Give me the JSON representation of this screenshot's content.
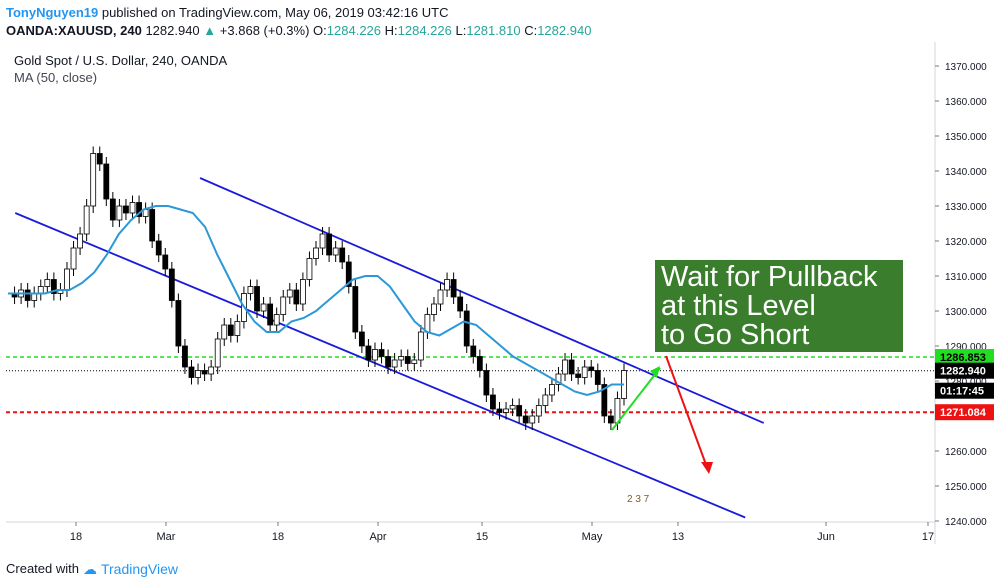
{
  "header": {
    "author": "TonyNguyen19",
    "published": "published on TradingView.com, May 06, 2019 03:42:16 UTC",
    "symbol": "OANDA:XAUUSD, 240",
    "last": "1282.940",
    "change": "+3.868 (+0.3%)",
    "o_label": "O:",
    "o_value": "1284.226",
    "h_label": "H:",
    "h_value": "1284.226",
    "l_label": "L:",
    "l_value": "1281.810",
    "c_label": "C:",
    "c_value": "1282.940"
  },
  "legend": {
    "title": "Gold Spot / U.S. Dollar, 240, OANDA",
    "ma": "MA (50, close)"
  },
  "annotation": {
    "line1": "Wait for Pullback",
    "line2": "at this Level",
    "line3": "to Go Short"
  },
  "footer": {
    "created_with": "Created with",
    "brand": "TradingView"
  },
  "badge": "2 3 7",
  "colors": {
    "channel": "#1a1adb",
    "ma": "#2b98d8",
    "green_level": "#22dd22",
    "red_level": "#ee1111",
    "annotation_bg": "#3a7d2c",
    "arrow_up": "#22dd22",
    "arrow_down": "#ee1111"
  },
  "chart_data": {
    "type": "line",
    "title": "Gold Spot / U.S. Dollar, 240, OANDA",
    "y_axis_ticks": [
      1240,
      1250,
      1260,
      1270,
      1280,
      1290,
      1300,
      1310,
      1320,
      1330,
      1340,
      1350,
      1360,
      1370
    ],
    "y_axis_tick_labels": [
      "1240.000",
      "1250.000",
      "1260.000",
      "1270.000",
      "1280.000",
      "1290.000",
      "1300.000",
      "1310.000",
      "1320.000",
      "1330.000",
      "1340.000",
      "1350.000",
      "1360.000",
      "1370.000"
    ],
    "ylim": [
      1240,
      1375
    ],
    "x_tick_labels": [
      "18",
      "Mar",
      "18",
      "Apr",
      "15",
      "May",
      "13",
      "Jun",
      "17"
    ],
    "price_labels": [
      {
        "name": "resistance",
        "value": "1286.853",
        "color": "#22dd22"
      },
      {
        "name": "last",
        "value": "1282.940",
        "color": "#000000"
      },
      {
        "name": "countdown",
        "value": "01:17:45",
        "color": "#000000"
      },
      {
        "name": "support",
        "value": "1271.084",
        "color": "#ee1111"
      }
    ],
    "levels": {
      "resistance": 1286.853,
      "last": 1282.94,
      "support": 1271.084
    },
    "price_series": [
      1305,
      1304,
      1306,
      1303,
      1305,
      1307,
      1309,
      1305,
      1306,
      1312,
      1318,
      1322,
      1330,
      1345,
      1342,
      1332,
      1326,
      1330,
      1328,
      1331,
      1327,
      1329,
      1320,
      1316,
      1312,
      1303,
      1290,
      1284,
      1281,
      1283,
      1282,
      1284,
      1292,
      1296,
      1293,
      1297,
      1305,
      1307,
      1300,
      1302,
      1296,
      1299,
      1304,
      1306,
      1302,
      1309,
      1315,
      1318,
      1322,
      1316,
      1318,
      1314,
      1307,
      1294,
      1290,
      1286,
      1289,
      1287,
      1284,
      1286,
      1287,
      1285,
      1286,
      1294,
      1299,
      1302,
      1306,
      1309,
      1304,
      1300,
      1290,
      1287,
      1283,
      1276,
      1272,
      1271,
      1272,
      1273,
      1270,
      1268,
      1270,
      1273,
      1276,
      1279,
      1282,
      1286,
      1282,
      1281,
      1284,
      1283,
      1279,
      1270,
      1268,
      1275,
      1283
    ],
    "ma_series": [
      1305,
      1305,
      1305,
      1305,
      1306,
      1306,
      1308,
      1311,
      1316,
      1322,
      1326,
      1329,
      1330,
      1330,
      1329,
      1328,
      1324,
      1316,
      1309,
      1302,
      1297,
      1294,
      1294,
      1297,
      1298,
      1300,
      1303,
      1306,
      1309,
      1310,
      1310,
      1307,
      1302,
      1297,
      1294,
      1293,
      1295,
      1297,
      1296,
      1293,
      1290,
      1287,
      1285,
      1283,
      1281,
      1279,
      1277,
      1276,
      1277,
      1279,
      1279
    ],
    "channel_upper": {
      "from": [
        1338,
        0.21
      ],
      "to": [
        1268,
        0.82
      ]
    },
    "channel_lower": {
      "from": [
        1328,
        0.01
      ],
      "to": [
        1241,
        0.8
      ]
    }
  }
}
